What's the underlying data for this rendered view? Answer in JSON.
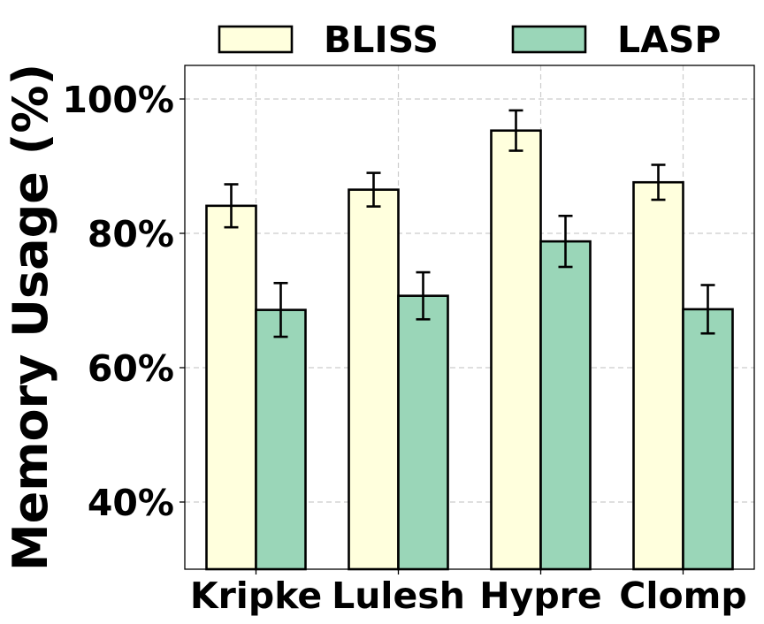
{
  "chart_data": {
    "type": "bar",
    "categories": [
      "Kripke",
      "Lulesh",
      "Hypre",
      "Clomp"
    ],
    "series": [
      {
        "name": "BLISS",
        "values": [
          84.1,
          86.5,
          95.3,
          87.6
        ],
        "errors": [
          3.2,
          2.5,
          3.0,
          2.6
        ],
        "color": "#ffffdd"
      },
      {
        "name": "LASP",
        "values": [
          68.6,
          70.7,
          78.8,
          68.7
        ],
        "errors": [
          4.0,
          3.5,
          3.8,
          3.6
        ],
        "color": "#9ad6b8"
      }
    ],
    "xlabel": "",
    "ylabel": "Memory Usage (%)",
    "ylim": [
      30,
      105
    ],
    "yticks": [
      40,
      60,
      80,
      100
    ],
    "ytick_labels": [
      "40%",
      "60%",
      "80%",
      "100%"
    ],
    "grid": true,
    "legend_position": "top"
  }
}
